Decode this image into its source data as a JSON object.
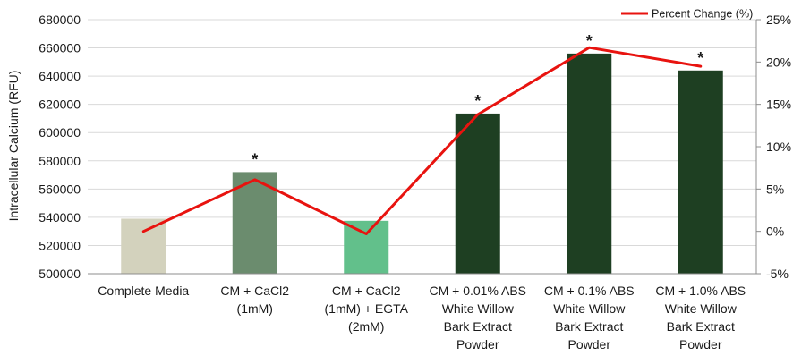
{
  "chart_data": {
    "type": "bar",
    "categories": [
      [
        "Complete Media"
      ],
      [
        "CM + CaCl2",
        "(1mM)"
      ],
      [
        "CM + CaCl2",
        "(1mM) + EGTA",
        "(2mM)"
      ],
      [
        "CM + 0.01% ABS",
        "White Willow",
        "Bark Extract",
        "Powder"
      ],
      [
        "CM + 0.1% ABS",
        "White Willow",
        "Bark Extract",
        "Powder"
      ],
      [
        "CM + 1.0% ABS",
        "White Willow",
        "Bark Extract",
        "Powder"
      ]
    ],
    "series": [
      {
        "axis": "left",
        "values": [
          539000,
          572000,
          537500,
          613500,
          656000,
          644000
        ],
        "colors": [
          "#d3d2bd",
          "#6b8c6e",
          "#62c08b",
          "#1e3f22",
          "#1e3f22",
          "#1e3f22"
        ]
      },
      {
        "name": "Percent Change (%)",
        "type": "line",
        "axis": "right",
        "values": [
          0,
          6.1,
          -0.3,
          13.8,
          21.7,
          19.5
        ],
        "color": "#e8130f"
      }
    ],
    "significance": [
      "",
      "*",
      "",
      "*",
      "*",
      "*"
    ],
    "ylabel": "Intracellular Calcium (RFU)",
    "ylim": [
      500000,
      680000
    ],
    "yticks": [
      500000,
      520000,
      540000,
      560000,
      580000,
      600000,
      620000,
      640000,
      660000,
      680000
    ],
    "y2lim": [
      -5,
      25
    ],
    "y2ticks": [
      "-5%",
      "0%",
      "5%",
      "10%",
      "15%",
      "20%",
      "25%"
    ],
    "y2tick_values": [
      -5,
      0,
      5,
      10,
      15,
      20,
      25
    ],
    "grid": true,
    "legend_position": "top-right"
  }
}
